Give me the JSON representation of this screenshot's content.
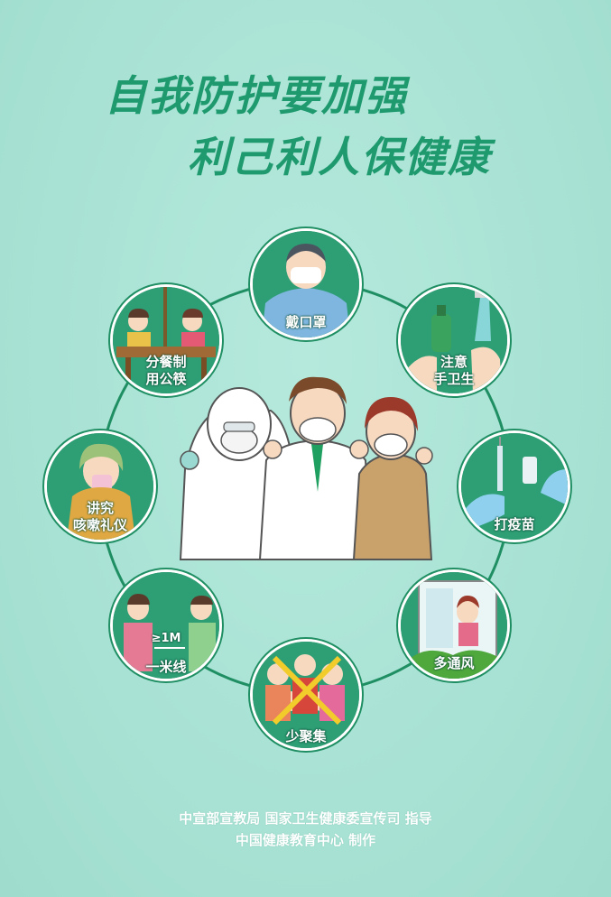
{
  "poster": {
    "title_line1": "自我防护要加强",
    "title_line2": "利己利人保健康"
  },
  "items": [
    {
      "label": "戴口罩",
      "icon": "face-mask-icon"
    },
    {
      "label": "注意\n手卫生",
      "icon": "hand-washing-icon"
    },
    {
      "label": "打疫苗",
      "icon": "vaccine-icon"
    },
    {
      "label": "多通风",
      "icon": "window-ventilation-icon"
    },
    {
      "label": "少聚集",
      "icon": "avoid-crowd-icon"
    },
    {
      "label": "一米线",
      "icon": "one-meter-distance-icon",
      "badge": "≥1M"
    },
    {
      "label": "讲究\n咳嗽礼仪",
      "icon": "cough-etiquette-icon"
    },
    {
      "label": "分餐制\n用公筷",
      "icon": "separate-meal-icon"
    }
  ],
  "footer": {
    "line1": "中宣部宣教局  国家卫生健康委宣传司  指导",
    "line2": "中国健康教育中心  制作"
  },
  "colors": {
    "background": "#a9e3d5",
    "brand_green": "#1f8f63",
    "title_green": "#1f9a6e"
  }
}
